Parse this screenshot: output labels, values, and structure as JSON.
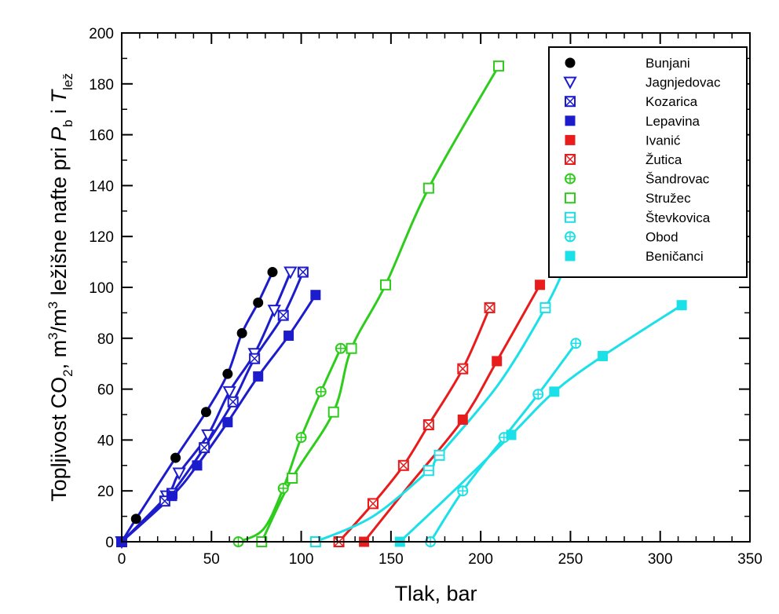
{
  "chart_data": {
    "type": "scatter",
    "xlabel": "Tlak, bar",
    "ylabel": {
      "prefix": "Topljivost  CO",
      "sub_co2": "2",
      "mid1": ", m",
      "sup1": "3",
      "mid2": "/m",
      "sup2": "3",
      "mid3": " ležišne nafte pri ",
      "p": "P",
      "sub_b": "b",
      "mid4": " i ",
      "t": "T",
      "sub_lez": "lež"
    },
    "xlim": [
      0,
      350
    ],
    "ylim": [
      0,
      200
    ],
    "xticks": [
      "0",
      "50",
      "100",
      "150",
      "200",
      "250",
      "300",
      "350"
    ],
    "yticks": [
      "0",
      "20",
      "40",
      "60",
      "80",
      "100",
      "120",
      "140",
      "160",
      "180",
      "200"
    ],
    "grid": false,
    "legend_position": "top-right",
    "colors": {
      "blue": "#1c1ccc",
      "red": "#e81c1c",
      "green": "#2ecc1c",
      "cyan": "#1ce0e8"
    },
    "series": [
      {
        "name": "Bunjani",
        "color": "#1c1ccc",
        "marker": "filled-circle",
        "points": [
          [
            0,
            0
          ],
          [
            8,
            9
          ],
          [
            30,
            33
          ],
          [
            47,
            51
          ],
          [
            59,
            66
          ],
          [
            67,
            82
          ],
          [
            76,
            94
          ],
          [
            84,
            106
          ]
        ],
        "curve": [
          [
            0,
            0
          ],
          [
            8,
            9
          ],
          [
            30,
            33
          ],
          [
            47,
            51
          ],
          [
            59,
            66
          ],
          [
            67,
            82
          ],
          [
            76,
            94
          ],
          [
            84,
            106
          ]
        ]
      },
      {
        "name": "Jagnjedovac",
        "color": "#1c1ccc",
        "marker": "open-triangle-down",
        "points": [
          [
            0,
            0
          ],
          [
            25,
            18
          ],
          [
            32,
            27
          ],
          [
            48,
            42
          ],
          [
            60,
            59
          ],
          [
            74,
            74
          ],
          [
            85,
            91
          ],
          [
            94,
            106
          ]
        ],
        "curve": [
          [
            0,
            0
          ],
          [
            25,
            18
          ],
          [
            32,
            27
          ],
          [
            48,
            42
          ],
          [
            60,
            59
          ],
          [
            74,
            74
          ],
          [
            85,
            91
          ],
          [
            94,
            106
          ]
        ]
      },
      {
        "name": "Kozarica",
        "color": "#1c1ccc",
        "marker": "open-square-x",
        "points": [
          [
            0,
            0
          ],
          [
            24,
            16
          ],
          [
            28,
            19
          ],
          [
            46,
            37
          ],
          [
            62,
            55
          ],
          [
            74,
            72
          ],
          [
            90,
            89
          ],
          [
            101,
            106
          ]
        ],
        "curve": [
          [
            0,
            0
          ],
          [
            24,
            16
          ],
          [
            28,
            19
          ],
          [
            46,
            37
          ],
          [
            62,
            55
          ],
          [
            74,
            72
          ],
          [
            90,
            89
          ],
          [
            101,
            106
          ]
        ]
      },
      {
        "name": "Lepavina",
        "color": "#1c1ccc",
        "marker": "filled-square",
        "points": [
          [
            0,
            0
          ],
          [
            28,
            18
          ],
          [
            42,
            30
          ],
          [
            59,
            47
          ],
          [
            76,
            65
          ],
          [
            93,
            81
          ],
          [
            108,
            97
          ]
        ],
        "curve": [
          [
            0,
            0
          ],
          [
            28,
            18
          ],
          [
            42,
            30
          ],
          [
            59,
            47
          ],
          [
            76,
            65
          ],
          [
            93,
            81
          ],
          [
            108,
            97
          ]
        ]
      },
      {
        "name": "Ivanić",
        "color": "#e81c1c",
        "marker": "filled-square",
        "points": [
          [
            135,
            0
          ],
          [
            190,
            48
          ],
          [
            209,
            71
          ],
          [
            233,
            101
          ]
        ],
        "curve": [
          [
            135,
            0
          ],
          [
            160,
            22
          ],
          [
            190,
            48
          ],
          [
            209,
            71
          ],
          [
            233,
            101
          ]
        ]
      },
      {
        "name": "Žutica",
        "color": "#e81c1c",
        "marker": "open-square-x",
        "points": [
          [
            121,
            0
          ],
          [
            140,
            15
          ],
          [
            157,
            30
          ],
          [
            171,
            46
          ],
          [
            190,
            68
          ],
          [
            205,
            92
          ]
        ],
        "curve": [
          [
            121,
            0
          ],
          [
            140,
            15
          ],
          [
            157,
            30
          ],
          [
            171,
            46
          ],
          [
            190,
            68
          ],
          [
            205,
            92
          ]
        ]
      },
      {
        "name": "Šandrovac",
        "color": "#2ecc1c",
        "marker": "crossed-circle",
        "points": [
          [
            65,
            0
          ],
          [
            90,
            21
          ],
          [
            100,
            41
          ],
          [
            111,
            59
          ],
          [
            122,
            76
          ]
        ],
        "curve": [
          [
            65,
            0
          ],
          [
            79,
            5
          ],
          [
            90,
            21
          ],
          [
            100,
            41
          ],
          [
            111,
            59
          ],
          [
            122,
            76
          ]
        ]
      },
      {
        "name": "Stružec",
        "color": "#2ecc1c",
        "marker": "open-square",
        "points": [
          [
            78,
            0
          ],
          [
            95,
            25
          ],
          [
            118,
            51
          ],
          [
            128,
            76
          ],
          [
            147,
            101
          ],
          [
            171,
            139
          ],
          [
            210,
            187
          ]
        ],
        "curve": [
          [
            78,
            0
          ],
          [
            95,
            25
          ],
          [
            118,
            51
          ],
          [
            128,
            76
          ],
          [
            147,
            101
          ],
          [
            171,
            139
          ],
          [
            210,
            187
          ]
        ]
      },
      {
        "name": "Števkovica",
        "color": "#1ce0e8",
        "marker": "open-square-minus",
        "points": [
          [
            108,
            0
          ],
          [
            171,
            28
          ],
          [
            177,
            34
          ],
          [
            236,
            92
          ]
        ],
        "curve": [
          [
            108,
            0
          ],
          [
            140,
            10
          ],
          [
            171,
            28
          ],
          [
            177,
            34
          ],
          [
            210,
            62
          ],
          [
            236,
            92
          ],
          [
            247,
            108
          ]
        ]
      },
      {
        "name": "Obod",
        "color": "#1ce0e8",
        "marker": "crossed-circle",
        "points": [
          [
            172,
            0
          ],
          [
            190,
            20
          ],
          [
            213,
            41
          ],
          [
            232,
            58
          ],
          [
            253,
            78
          ]
        ],
        "curve": [
          [
            172,
            0
          ],
          [
            190,
            20
          ],
          [
            213,
            41
          ],
          [
            232,
            58
          ],
          [
            253,
            78
          ]
        ]
      },
      {
        "name": "Beničanci",
        "color": "#1ce0e8",
        "marker": "filled-square",
        "points": [
          [
            155,
            0
          ],
          [
            217,
            42
          ],
          [
            241,
            59
          ],
          [
            268,
            73
          ],
          [
            312,
            93
          ]
        ],
        "curve": [
          [
            155,
            0
          ],
          [
            185,
            20
          ],
          [
            217,
            42
          ],
          [
            241,
            59
          ],
          [
            268,
            73
          ],
          [
            312,
            93
          ]
        ]
      }
    ]
  }
}
